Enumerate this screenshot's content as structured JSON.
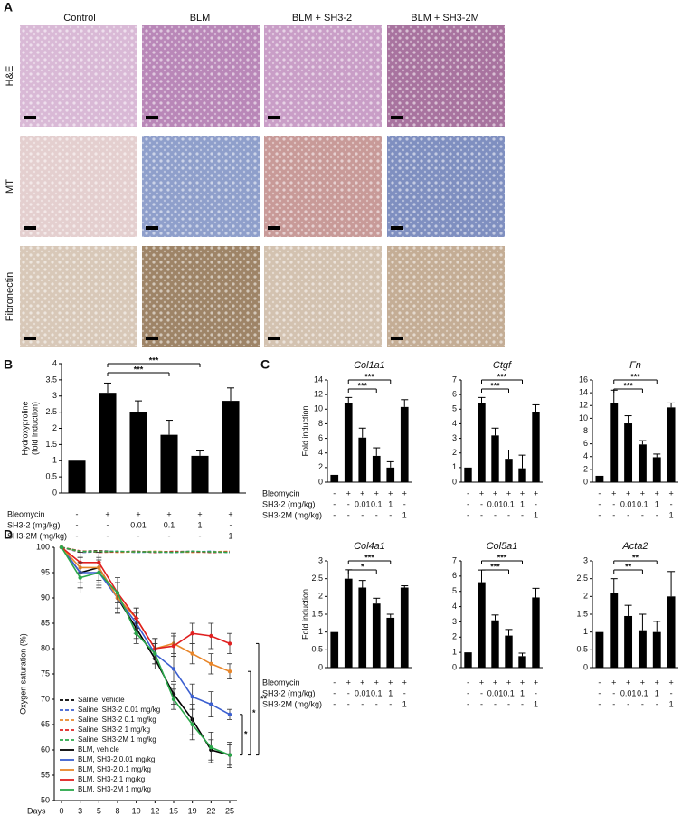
{
  "panels": [
    "A",
    "B",
    "C",
    "D"
  ],
  "panel_a": {
    "columns": [
      "Control",
      "BLM",
      "BLM + SH3-2",
      "BLM + SH3-2M"
    ],
    "rows": [
      "H&E",
      "MT",
      "Fibronectin"
    ]
  },
  "chart_data": [
    {
      "type": "bar",
      "ylabel": [
        "Hydroxyproline",
        "(fold induction)"
      ],
      "ylim": [
        0,
        4
      ],
      "yticks": [
        0,
        0.5,
        1,
        1.5,
        2,
        2.5,
        3,
        3.5,
        4
      ],
      "values": [
        1,
        3.1,
        2.5,
        1.8,
        1.15,
        2.85
      ],
      "errors": [
        0,
        0.3,
        0.35,
        0.45,
        0.15,
        0.4
      ],
      "color": "#000000",
      "significance": [
        "***",
        "***"
      ],
      "condition_labels": [
        "Bleomycin",
        "SH3-2 (mg/kg)",
        "SH3-2M (mg/kg)"
      ],
      "condition_marks": [
        [
          "-",
          "+",
          "+",
          "+",
          "+",
          "+"
        ],
        [
          "-",
          "-",
          "0.01",
          "0.1",
          "1",
          "-"
        ],
        [
          "-",
          "-",
          "-",
          "-",
          "-",
          "1"
        ]
      ]
    },
    {
      "type": "bar",
      "title": "Col1a1",
      "ylabel": "Fold induction",
      "ylim": [
        0,
        14
      ],
      "yticks": [
        0,
        2,
        4,
        6,
        8,
        10,
        12,
        14
      ],
      "values": [
        1,
        10.8,
        6.1,
        3.6,
        2.0,
        10.3
      ],
      "errors": [
        0,
        0.8,
        1.3,
        1.1,
        0.8,
        1.0
      ],
      "color": "#000000",
      "significance": [
        "***",
        "***"
      ],
      "condition_labels": [
        "Bleomycin",
        "SH3-2 (mg/kg)",
        "SH3-2M (mg/kg)"
      ],
      "condition_marks": [
        [
          "-",
          "+",
          "+",
          "+",
          "+",
          "+"
        ],
        [
          "-",
          "-",
          "0.01",
          "0.1",
          "1",
          "-"
        ],
        [
          "-",
          "-",
          "-",
          "-",
          "-",
          "1"
        ]
      ]
    },
    {
      "type": "bar",
      "title": "Ctgf",
      "ylim": [
        0,
        7
      ],
      "yticks": [
        0,
        1,
        2,
        3,
        4,
        5,
        6,
        7
      ],
      "values": [
        1,
        5.4,
        3.2,
        1.6,
        0.95,
        4.8
      ],
      "errors": [
        0,
        0.4,
        0.5,
        0.6,
        0.9,
        0.5
      ],
      "color": "#000000",
      "significance": [
        "***",
        "***"
      ],
      "condition_marks": [
        [
          "-",
          "+",
          "+",
          "+",
          "+",
          "+"
        ],
        [
          "-",
          "-",
          "0.01",
          "0.1",
          "1",
          "-"
        ],
        [
          "-",
          "-",
          "-",
          "-",
          "-",
          "1"
        ]
      ]
    },
    {
      "type": "bar",
      "title": "Fn",
      "ylim": [
        0,
        16
      ],
      "yticks": [
        0,
        2,
        4,
        6,
        8,
        10,
        12,
        14,
        16
      ],
      "values": [
        1,
        12.4,
        9.2,
        5.9,
        3.9,
        11.7
      ],
      "errors": [
        0,
        2,
        1.2,
        0.6,
        0.5,
        0.7
      ],
      "color": "#000000",
      "significance": [
        "***",
        "***"
      ],
      "condition_marks": [
        [
          "-",
          "+",
          "+",
          "+",
          "+",
          "+"
        ],
        [
          "-",
          "-",
          "0.01",
          "0.1",
          "1",
          "-"
        ],
        [
          "-",
          "-",
          "-",
          "-",
          "-",
          "1"
        ]
      ]
    },
    {
      "type": "bar",
      "title": "Col4a1",
      "ylabel": "Fold induction",
      "ylim": [
        0,
        3
      ],
      "yticks": [
        0,
        0.5,
        1,
        1.5,
        2,
        2.5,
        3
      ],
      "values": [
        1,
        2.5,
        2.25,
        1.8,
        1.4,
        2.25
      ],
      "errors": [
        0,
        0.25,
        0.2,
        0.15,
        0.1,
        0.05
      ],
      "color": "#000000",
      "significance": [
        "*",
        "***"
      ],
      "condition_labels": [
        "Bleomycin",
        "SH3-2 (mg/kg)",
        "SH3-2M (mg/kg)"
      ],
      "condition_marks": [
        [
          "-",
          "+",
          "+",
          "+",
          "+",
          "+"
        ],
        [
          "-",
          "-",
          "0.01",
          "0.1",
          "1",
          "-"
        ],
        [
          "-",
          "-",
          "-",
          "-",
          "-",
          "1"
        ]
      ]
    },
    {
      "type": "bar",
      "title": "Col5a1",
      "ylim": [
        0,
        7
      ],
      "yticks": [
        0,
        1,
        2,
        3,
        4,
        5,
        6,
        7
      ],
      "values": [
        1,
        5.6,
        3.1,
        2.1,
        0.75,
        4.6
      ],
      "errors": [
        0,
        0.8,
        0.35,
        0.4,
        0.2,
        0.6
      ],
      "color": "#000000",
      "significance": [
        "***",
        "***"
      ],
      "condition_marks": [
        [
          "-",
          "+",
          "+",
          "+",
          "+",
          "+"
        ],
        [
          "-",
          "-",
          "0.01",
          "0.1",
          "1",
          "-"
        ],
        [
          "-",
          "-",
          "-",
          "-",
          "-",
          "1"
        ]
      ]
    },
    {
      "type": "bar",
      "title": "Acta2",
      "ylim": [
        0,
        3
      ],
      "yticks": [
        0,
        0.5,
        1,
        1.5,
        2,
        2.5,
        3
      ],
      "values": [
        1,
        2.1,
        1.45,
        1.05,
        1.0,
        2.0
      ],
      "errors": [
        0,
        0.4,
        0.3,
        0.45,
        0.3,
        0.7
      ],
      "color": "#000000",
      "significance": [
        "**",
        "**"
      ],
      "condition_marks": [
        [
          "-",
          "+",
          "+",
          "+",
          "+",
          "+"
        ],
        [
          "-",
          "-",
          "0.01",
          "0.1",
          "1",
          "-"
        ],
        [
          "-",
          "-",
          "-",
          "-",
          "-",
          "1"
        ]
      ]
    },
    {
      "type": "line",
      "xlabel": "Days",
      "ylabel": "Oxygen saturation (%)",
      "categories": [
        "0",
        "3",
        "5",
        "8",
        "10",
        "12",
        "15",
        "19",
        "22",
        "25"
      ],
      "ylim": [
        50,
        100
      ],
      "yticks": [
        50,
        55,
        60,
        65,
        70,
        75,
        80,
        85,
        90,
        95,
        100
      ],
      "legend": "lower left",
      "significance": [
        "*",
        "*",
        "**"
      ],
      "series": [
        {
          "name": "Saline, vehicle",
          "color": "#000000",
          "dashed": true,
          "values": [
            100,
            99.2,
            99.3,
            99.1,
            99.2,
            99.0,
            99.1,
            99.2,
            99.0,
            99.1
          ]
        },
        {
          "name": "Saline, SH3-2 0.01 mg/kg",
          "color": "#3b5fd0",
          "dashed": true,
          "values": [
            100,
            99.0,
            99.1,
            99.2,
            99.0,
            99.1,
            99.0,
            99.1,
            99.2,
            99.0
          ]
        },
        {
          "name": "Saline, SH3-2 0.1 mg/kg",
          "color": "#e8862a",
          "dashed": true,
          "values": [
            100,
            99.1,
            99.2,
            99.0,
            99.1,
            99.2,
            99.1,
            99.0,
            99.1,
            99.2
          ]
        },
        {
          "name": "Saline, SH3-2 1 mg/kg",
          "color": "#e02020",
          "dashed": true,
          "values": [
            100,
            99.3,
            99.0,
            99.1,
            99.2,
            99.0,
            99.2,
            99.1,
            99.0,
            99.1
          ]
        },
        {
          "name": "Saline, SH3-2M 1 mg/kg",
          "color": "#2aa84a",
          "dashed": true,
          "values": [
            100,
            99.2,
            99.1,
            99.2,
            99.1,
            99.1,
            99.0,
            99.2,
            99.1,
            99.0
          ]
        },
        {
          "name": "BLM, vehicle",
          "color": "#000000",
          "values": [
            100,
            95,
            96,
            90,
            84,
            78,
            71,
            66,
            60,
            59
          ],
          "errors": [
            0,
            3,
            3,
            3,
            2,
            2,
            2,
            3,
            2,
            2
          ]
        },
        {
          "name": "BLM, SH3-2 0.01 mg/kg",
          "color": "#3b5fd0",
          "values": [
            100,
            95,
            95,
            90,
            85,
            79,
            76,
            70.5,
            69,
            67
          ],
          "errors": [
            0,
            3,
            2.5,
            3,
            2,
            2,
            2.5,
            2.5,
            2.5,
            1
          ]
        },
        {
          "name": "BLM, SH3-2 0.1 mg/kg",
          "color": "#e8862a",
          "values": [
            100,
            96,
            96,
            90,
            86,
            80,
            81,
            79,
            77,
            75.5
          ],
          "errors": [
            0,
            3,
            2.5,
            3,
            2,
            2,
            2,
            2,
            2,
            1.5
          ]
        },
        {
          "name": "BLM, SH3-2 1 mg/kg",
          "color": "#e02020",
          "values": [
            100,
            97,
            97,
            91,
            86,
            80,
            80.5,
            83,
            82.5,
            81
          ],
          "errors": [
            0,
            2,
            2,
            2,
            2,
            2,
            2,
            2,
            2.5,
            2
          ]
        },
        {
          "name": "BLM, SH3-2M 1 mg/kg",
          "color": "#2aa84a",
          "values": [
            100,
            94,
            95,
            91,
            83,
            79,
            70,
            65,
            60.5,
            59
          ],
          "errors": [
            0,
            3,
            3,
            3,
            2,
            2,
            2,
            3,
            3,
            2.5
          ]
        }
      ]
    }
  ]
}
